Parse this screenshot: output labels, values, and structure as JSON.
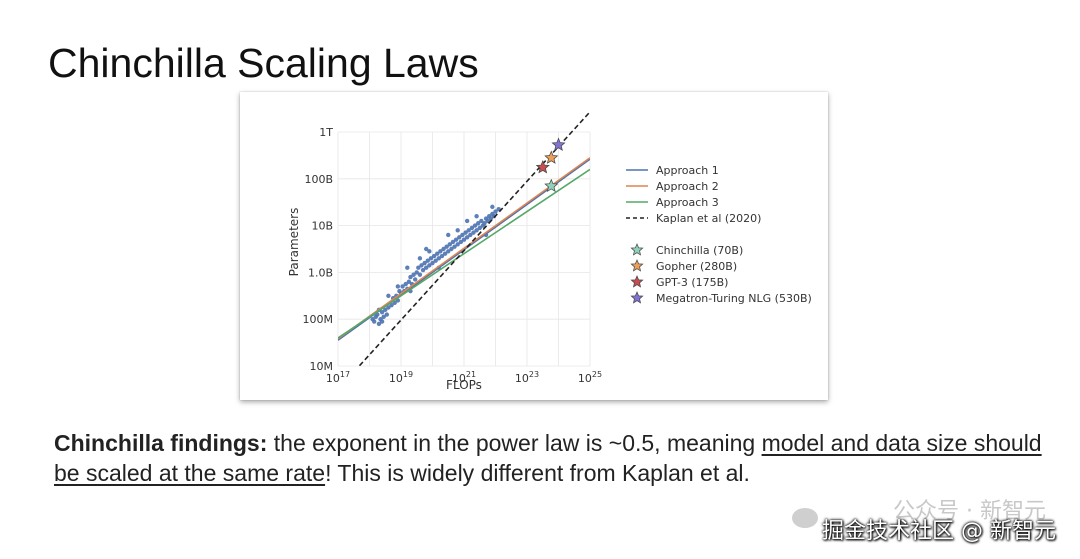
{
  "slide": {
    "title": "Chinchilla Scaling Laws"
  },
  "findings": {
    "bold_lead": "Chinchilla findings:",
    "text_plain": " the exponent in the power law is ~0.5, meaning ",
    "text_underlined": "model and data size should be scaled at the same rate",
    "text_tail": "! This is widely different from Kaplan et al."
  },
  "watermark": {
    "faint_text": "公众号 · 新智元",
    "text": "掘金技术社区 @ 新智元"
  },
  "chart_data": {
    "type": "scatter",
    "xlabel": "FLOPs",
    "ylabel": "Parameters",
    "x_scale": "log",
    "y_scale": "log",
    "xlim_exp": [
      17,
      25
    ],
    "ylim_exp": [
      7,
      12
    ],
    "x_ticks": [
      {
        "exp": 17,
        "base": "10",
        "sup": "17"
      },
      {
        "exp": 19,
        "base": "10",
        "sup": "19"
      },
      {
        "exp": 21,
        "base": "10",
        "sup": "21"
      },
      {
        "exp": 23,
        "base": "10",
        "sup": "23"
      },
      {
        "exp": 25,
        "base": "10",
        "sup": "25"
      }
    ],
    "y_ticks": [
      {
        "exp": 7,
        "label": "10M"
      },
      {
        "exp": 8,
        "label": "100M"
      },
      {
        "exp": 9,
        "label": "1.0B"
      },
      {
        "exp": 10,
        "label": "10B"
      },
      {
        "exp": 11,
        "label": "100B"
      },
      {
        "exp": 12,
        "label": "1T"
      }
    ],
    "grid": true,
    "legend_position": "right",
    "lines": [
      {
        "name": "Approach 1",
        "color": "#4c72b0",
        "style": "solid",
        "points": [
          [
            17,
            7.55
          ],
          [
            25,
            11.42
          ]
        ]
      },
      {
        "name": "Approach 2",
        "color": "#dd8452",
        "style": "solid",
        "points": [
          [
            17,
            7.58
          ],
          [
            25,
            11.45
          ]
        ]
      },
      {
        "name": "Approach 3",
        "color": "#55a868",
        "style": "solid",
        "points": [
          [
            17,
            7.6
          ],
          [
            25,
            11.2
          ]
        ]
      },
      {
        "name": "Kaplan et al (2020)",
        "color": "#222222",
        "style": "dashed",
        "points": [
          [
            17,
            6.5
          ],
          [
            25,
            12.43
          ]
        ]
      }
    ],
    "scatter_color": "#4c72b0",
    "scatter_log_points": [
      [
        18.1,
        8.0
      ],
      [
        18.15,
        7.95
      ],
      [
        18.2,
        8.05
      ],
      [
        18.25,
        8.1
      ],
      [
        18.3,
        7.9
      ],
      [
        18.35,
        8.0
      ],
      [
        18.4,
        8.15
      ],
      [
        18.45,
        8.05
      ],
      [
        18.5,
        8.2
      ],
      [
        18.55,
        8.1
      ],
      [
        18.6,
        8.25
      ],
      [
        18.3,
        8.2
      ],
      [
        18.4,
        7.95
      ],
      [
        18.7,
        8.3
      ],
      [
        18.75,
        8.45
      ],
      [
        18.8,
        8.35
      ],
      [
        18.85,
        8.5
      ],
      [
        18.9,
        8.4
      ],
      [
        18.95,
        8.6
      ],
      [
        19.0,
        8.55
      ],
      [
        19.05,
        8.7
      ],
      [
        19.1,
        8.6
      ],
      [
        19.15,
        8.75
      ],
      [
        19.2,
        8.65
      ],
      [
        19.25,
        8.8
      ],
      [
        19.3,
        8.9
      ],
      [
        19.35,
        8.75
      ],
      [
        19.4,
        8.95
      ],
      [
        19.45,
        8.85
      ],
      [
        19.5,
        9.0
      ],
      [
        19.55,
        9.1
      ],
      [
        19.6,
        8.95
      ],
      [
        19.65,
        9.15
      ],
      [
        19.7,
        9.05
      ],
      [
        19.75,
        9.2
      ],
      [
        19.8,
        9.1
      ],
      [
        19.85,
        9.25
      ],
      [
        19.9,
        9.15
      ],
      [
        19.95,
        9.3
      ],
      [
        20.0,
        9.2
      ],
      [
        20.05,
        9.35
      ],
      [
        20.1,
        9.25
      ],
      [
        20.15,
        9.4
      ],
      [
        20.2,
        9.3
      ],
      [
        20.25,
        9.45
      ],
      [
        20.3,
        9.35
      ],
      [
        20.35,
        9.5
      ],
      [
        20.4,
        9.4
      ],
      [
        20.45,
        9.55
      ],
      [
        20.5,
        9.45
      ],
      [
        20.55,
        9.6
      ],
      [
        20.6,
        9.5
      ],
      [
        20.65,
        9.65
      ],
      [
        20.7,
        9.55
      ],
      [
        20.75,
        9.7
      ],
      [
        20.8,
        9.6
      ],
      [
        20.85,
        9.75
      ],
      [
        20.9,
        9.65
      ],
      [
        20.95,
        9.8
      ],
      [
        21.0,
        9.7
      ],
      [
        21.05,
        9.85
      ],
      [
        21.1,
        9.75
      ],
      [
        21.15,
        9.9
      ],
      [
        21.2,
        9.8
      ],
      [
        21.25,
        9.95
      ],
      [
        21.3,
        9.85
      ],
      [
        21.35,
        10.0
      ],
      [
        21.4,
        9.9
      ],
      [
        21.45,
        10.05
      ],
      [
        21.5,
        9.95
      ],
      [
        21.55,
        10.1
      ],
      [
        21.6,
        10.0
      ],
      [
        21.65,
        10.05
      ],
      [
        21.7,
        10.15
      ],
      [
        21.75,
        10.1
      ],
      [
        21.8,
        10.2
      ],
      [
        21.85,
        10.15
      ],
      [
        21.9,
        10.25
      ],
      [
        21.95,
        10.2
      ],
      [
        22.0,
        10.3
      ],
      [
        20.2,
        9.1
      ],
      [
        19.9,
        9.45
      ],
      [
        19.6,
        9.3
      ],
      [
        19.3,
        8.6
      ],
      [
        18.9,
        8.7
      ],
      [
        18.6,
        8.5
      ],
      [
        20.8,
        9.9
      ],
      [
        21.1,
        10.1
      ],
      [
        21.4,
        10.2
      ],
      [
        21.7,
        9.8
      ],
      [
        20.5,
        9.8
      ],
      [
        19.2,
        9.1
      ],
      [
        19.8,
        9.5
      ],
      [
        21.9,
        10.4
      ],
      [
        22.1,
        10.35
      ]
    ],
    "models": [
      {
        "name": "Chinchilla (70B)",
        "color": "#8fd1bb",
        "flops_exp": 23.77,
        "params_exp": 10.845
      },
      {
        "name": "Gopher (280B)",
        "color": "#e8a05a",
        "flops_exp": 23.77,
        "params_exp": 11.447
      },
      {
        "name": "GPT-3 (175B)",
        "color": "#c44e52",
        "flops_exp": 23.5,
        "params_exp": 11.243
      },
      {
        "name": "Megatron-Turing NLG (530B)",
        "color": "#8172d2",
        "flops_exp": 24.0,
        "params_exp": 11.724
      }
    ]
  }
}
